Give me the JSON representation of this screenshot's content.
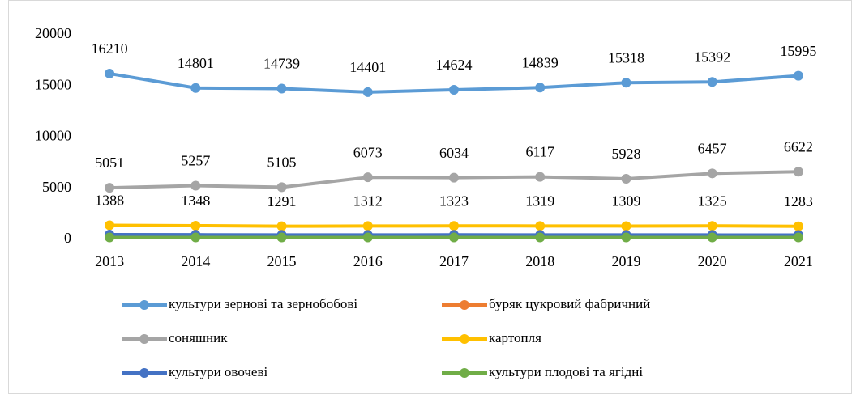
{
  "chart_data": {
    "type": "line",
    "categories": [
      "2013",
      "2014",
      "2015",
      "2016",
      "2017",
      "2018",
      "2019",
      "2020",
      "2021"
    ],
    "ylim": [
      0,
      20000
    ],
    "yticks": [
      0,
      5000,
      10000,
      15000,
      20000
    ],
    "grid": false,
    "series": [
      {
        "name": "культури зернові та зернобобові",
        "color": "#5b9bd5",
        "labels": true,
        "values": [
          16210,
          14801,
          14739,
          14401,
          14624,
          14839,
          15318,
          15392,
          15995
        ]
      },
      {
        "name": "буряк цукровий фабричний",
        "color": "#ed7d31",
        "labels": false,
        "values": [
          250,
          250,
          250,
          250,
          250,
          250,
          250,
          250,
          250
        ]
      },
      {
        "name": "соняшник",
        "color": "#a5a5a5",
        "labels": true,
        "values": [
          5051,
          5257,
          5105,
          6073,
          6034,
          6117,
          5928,
          6457,
          6622
        ]
      },
      {
        "name": "картопля",
        "color": "#ffc000",
        "labels": true,
        "values": [
          1388,
          1348,
          1291,
          1312,
          1323,
          1319,
          1309,
          1325,
          1283
        ]
      },
      {
        "name": "культури овочеві",
        "color": "#4472c4",
        "labels": false,
        "values": [
          470,
          460,
          440,
          440,
          450,
          440,
          440,
          440,
          430
        ]
      },
      {
        "name": "культури плодові та ягідні",
        "color": "#70ad47",
        "labels": false,
        "values": [
          200,
          200,
          200,
          200,
          200,
          200,
          200,
          200,
          200
        ]
      }
    ]
  }
}
